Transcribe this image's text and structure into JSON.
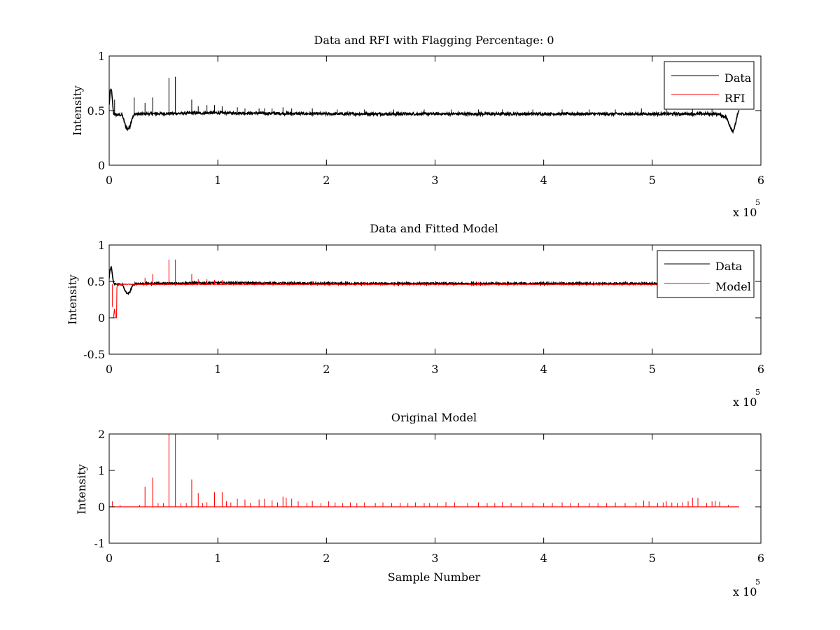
{
  "figure": {
    "background": "#ffffff",
    "colors": {
      "data": "#000000",
      "red": "#ff0000",
      "axis": "#000000"
    }
  },
  "chart_data": [
    {
      "type": "line",
      "title": "Data and RFI with Flagging Percentage: 0",
      "xlabel": "",
      "ylabel": "Intensity",
      "xlim": [
        0,
        6
      ],
      "ylim": [
        0,
        1
      ],
      "xticks": [
        0,
        1,
        2,
        3,
        4,
        5,
        6
      ],
      "yticks": [
        0,
        0.5,
        1
      ],
      "xtick_labels": [
        "0",
        "1",
        "2",
        "3",
        "4",
        "5",
        "6"
      ],
      "ytick_labels": [
        "0",
        "0.5",
        "1"
      ],
      "x_multiplier": {
        "base": "x 10",
        "exponent": "5"
      },
      "grid": false,
      "legend": {
        "position": "top-right",
        "entries": [
          {
            "label": "Data",
            "color": "#000000"
          },
          {
            "label": "RFI",
            "color": "#ff0000"
          }
        ]
      },
      "series": [
        {
          "name": "Data",
          "color": "#000000",
          "x": [
            0,
            0.01,
            0.02,
            0.04,
            0.07,
            0.12,
            0.15,
            0.17,
            0.19,
            0.21,
            0.24,
            0.3,
            1,
            2,
            3,
            4,
            5,
            5.6,
            5.68,
            5.72,
            5.74,
            5.76,
            5.78,
            5.8
          ],
          "y": [
            0.55,
            0.68,
            0.7,
            0.47,
            0.46,
            0.46,
            0.36,
            0.33,
            0.35,
            0.43,
            0.47,
            0.47,
            0.48,
            0.47,
            0.47,
            0.47,
            0.47,
            0.47,
            0.44,
            0.35,
            0.31,
            0.35,
            0.45,
            0.5
          ],
          "noise": 0.012
        },
        {
          "name": "Data spikes",
          "color": "#000000",
          "x": [
            0.05,
            0.23,
            0.33,
            0.4,
            0.55,
            0.61,
            0.76,
            0.82,
            0.9,
            0.97,
            1.04,
            1.18,
            1.25,
            1.38,
            1.43,
            1.5,
            1.6,
            1.68,
            1.87,
            2.1,
            2.35,
            2.62,
            2.9,
            3.15,
            3.4,
            3.62,
            3.9,
            4.17,
            4.42,
            4.66,
            4.9,
            5.13,
            5.37,
            5.55
          ],
          "y": [
            0.6,
            0.62,
            0.57,
            0.62,
            0.8,
            0.81,
            0.6,
            0.54,
            0.55,
            0.55,
            0.54,
            0.53,
            0.52,
            0.52,
            0.52,
            0.52,
            0.53,
            0.52,
            0.52,
            0.51,
            0.51,
            0.51,
            0.51,
            0.51,
            0.51,
            0.51,
            0.51,
            0.51,
            0.51,
            0.51,
            0.52,
            0.52,
            0.52,
            0.52
          ],
          "base": 0.47
        }
      ]
    },
    {
      "type": "line",
      "title": "Data and Fitted Model",
      "xlabel": "",
      "ylabel": "Intensity",
      "xlim": [
        0,
        6
      ],
      "ylim": [
        -0.5,
        1
      ],
      "xticks": [
        0,
        1,
        2,
        3,
        4,
        5,
        6
      ],
      "yticks": [
        -0.5,
        0,
        0.5,
        1
      ],
      "xtick_labels": [
        "0",
        "1",
        "2",
        "3",
        "4",
        "5",
        "6"
      ],
      "ytick_labels": [
        "-0.5",
        "0",
        "0.5",
        "1"
      ],
      "x_multiplier": {
        "base": "x 10",
        "exponent": "5"
      },
      "grid": false,
      "legend": {
        "position": "top-right",
        "entries": [
          {
            "label": "Data",
            "color": "#000000"
          },
          {
            "label": "Model",
            "color": "#ff0000"
          }
        ]
      },
      "series": [
        {
          "name": "Data",
          "color": "#000000",
          "x": [
            0,
            0.01,
            0.02,
            0.04,
            0.07,
            0.12,
            0.15,
            0.17,
            0.19,
            0.21,
            0.24,
            0.3,
            1,
            2,
            3,
            4,
            5,
            5.8
          ],
          "y": [
            0.55,
            0.68,
            0.7,
            0.47,
            0.46,
            0.46,
            0.36,
            0.33,
            0.35,
            0.43,
            0.47,
            0.47,
            0.48,
            0.47,
            0.47,
            0.47,
            0.47,
            0.47
          ],
          "noise": 0.012
        },
        {
          "name": "Model",
          "color": "#ff0000",
          "x": [
            0,
            0.005,
            0.006,
            0.04,
            0.05,
            0.055,
            0.07,
            0.071,
            0.12,
            0.5,
            1,
            2,
            3,
            4,
            5,
            5.8
          ],
          "y": [
            0,
            0,
            0,
            0,
            0.15,
            0,
            0,
            0.45,
            0.46,
            0.46,
            0.46,
            0.46,
            0.46,
            0.46,
            0.46,
            0.46
          ],
          "noise": 0.004
        },
        {
          "name": "Model spikes",
          "color": "#ff0000",
          "x": [
            0.03,
            0.33,
            0.4,
            0.55,
            0.61,
            0.76,
            0.82,
            0.9,
            0.97,
            1.04,
            1.18,
            1.25,
            1.38,
            1.43,
            1.5,
            1.6,
            1.68,
            1.87,
            2.1,
            2.35,
            2.62,
            2.9,
            3.15,
            3.4,
            3.62,
            3.9,
            4.17,
            4.42,
            4.66,
            4.9
          ],
          "y": [
            0.15,
            0.55,
            0.6,
            0.8,
            0.8,
            0.6,
            0.53,
            0.53,
            0.52,
            0.52,
            0.51,
            0.5,
            0.5,
            0.5,
            0.5,
            0.5,
            0.5,
            0.5,
            0.49,
            0.49,
            0.49,
            0.49,
            0.49,
            0.49,
            0.49,
            0.49,
            0.49,
            0.49,
            0.49,
            0.49
          ],
          "base": 0.46
        }
      ]
    },
    {
      "type": "line",
      "title": "Original Model",
      "xlabel": "Sample Number",
      "ylabel": "Intensity",
      "xlim": [
        0,
        6
      ],
      "ylim": [
        -1,
        2
      ],
      "xticks": [
        0,
        1,
        2,
        3,
        4,
        5,
        6
      ],
      "yticks": [
        -1,
        0,
        1,
        2
      ],
      "xtick_labels": [
        "0",
        "1",
        "2",
        "3",
        "4",
        "5",
        "6"
      ],
      "ytick_labels": [
        "-1",
        "0",
        "1",
        "2"
      ],
      "x_multiplier": {
        "base": "x 10",
        "exponent": "5"
      },
      "grid": false,
      "series": [
        {
          "name": "Model baseline",
          "color": "#ff0000",
          "x": [
            0,
            5.8
          ],
          "y": [
            0,
            0
          ]
        },
        {
          "name": "Model spikes",
          "color": "#ff0000",
          "x": [
            0.03,
            0.1,
            0.28,
            0.33,
            0.4,
            0.45,
            0.5,
            0.55,
            0.61,
            0.66,
            0.71,
            0.76,
            0.82,
            0.86,
            0.9,
            0.97,
            1.04,
            1.08,
            1.12,
            1.18,
            1.25,
            1.3,
            1.38,
            1.43,
            1.5,
            1.55,
            1.6,
            1.63,
            1.68,
            1.74,
            1.82,
            1.87,
            1.95,
            2.02,
            2.08,
            2.15,
            2.22,
            2.28,
            2.35,
            2.45,
            2.52,
            2.6,
            2.68,
            2.75,
            2.82,
            2.9,
            2.95,
            3.02,
            3.1,
            3.18,
            3.3,
            3.4,
            3.48,
            3.55,
            3.62,
            3.7,
            3.8,
            3.9,
            4.0,
            4.08,
            4.17,
            4.25,
            4.32,
            4.42,
            4.5,
            4.58,
            4.66,
            4.75,
            4.85,
            4.92,
            4.97,
            5.05,
            5.1,
            5.13,
            5.18,
            5.23,
            5.28,
            5.33,
            5.37,
            5.42,
            5.5,
            5.55,
            5.58,
            5.62,
            5.7
          ],
          "y": [
            0.15,
            0.05,
            0.05,
            0.55,
            0.8,
            0.1,
            0.1,
            2,
            2,
            0.1,
            0.1,
            0.75,
            0.38,
            0.1,
            0.13,
            0.4,
            0.4,
            0.15,
            0.12,
            0.22,
            0.2,
            0.1,
            0.2,
            0.22,
            0.18,
            0.12,
            0.28,
            0.25,
            0.22,
            0.15,
            0.1,
            0.16,
            0.1,
            0.15,
            0.12,
            0.1,
            0.12,
            0.1,
            0.12,
            0.1,
            0.12,
            0.1,
            0.1,
            0.1,
            0.12,
            0.1,
            0.1,
            0.1,
            0.13,
            0.12,
            0.1,
            0.12,
            0.1,
            0.1,
            0.13,
            0.1,
            0.12,
            0.1,
            0.1,
            0.1,
            0.12,
            0.1,
            0.1,
            0.1,
            0.1,
            0.1,
            0.12,
            0.1,
            0.12,
            0.17,
            0.15,
            0.1,
            0.12,
            0.15,
            0.12,
            0.1,
            0.12,
            0.15,
            0.25,
            0.25,
            0.1,
            0.15,
            0.16,
            0.14,
            0.05
          ],
          "base": 0
        }
      ]
    }
  ]
}
